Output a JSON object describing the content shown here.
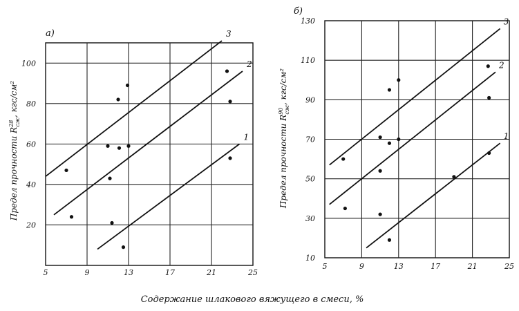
{
  "chart_data": [
    {
      "type": "scatter",
      "panel_label": "а)",
      "ylabel": "Предел прочности R",
      "ylabel_sup": "28",
      "ylabel_sub": "сж",
      "ylabel_unit": ", кгс/см²",
      "xlim": [
        5,
        25
      ],
      "ylim": [
        0,
        110
      ],
      "x_ticks": [
        5,
        9,
        13,
        17,
        21,
        25
      ],
      "y_ticks": [
        20,
        40,
        60,
        80,
        100
      ],
      "grid": true,
      "points": [
        {
          "x": 7.0,
          "y": 47
        },
        {
          "x": 7.5,
          "y": 24
        },
        {
          "x": 11.0,
          "y": 59
        },
        {
          "x": 11.2,
          "y": 43
        },
        {
          "x": 11.4,
          "y": 21
        },
        {
          "x": 12.0,
          "y": 82
        },
        {
          "x": 12.1,
          "y": 58
        },
        {
          "x": 12.5,
          "y": 9
        },
        {
          "x": 12.9,
          "y": 89
        },
        {
          "x": 13.0,
          "y": 59
        },
        {
          "x": 22.5,
          "y": 96
        },
        {
          "x": 22.8,
          "y": 81
        },
        {
          "x": 22.8,
          "y": 53
        }
      ],
      "lines": [
        {
          "name": "1",
          "x": [
            10,
            23.7
          ],
          "y": [
            8,
            60
          ]
        },
        {
          "name": "2",
          "x": [
            5.8,
            24
          ],
          "y": [
            25,
            96
          ]
        },
        {
          "name": "3",
          "x": [
            5,
            22
          ],
          "y": [
            44,
            111
          ]
        }
      ]
    },
    {
      "type": "scatter",
      "panel_label": "б)",
      "ylabel": "Предел прочности R",
      "ylabel_sup": "90",
      "ylabel_sub": "сж",
      "ylabel_unit": ", кгс/см²",
      "xlim": [
        5,
        25
      ],
      "ylim": [
        10,
        130
      ],
      "x_ticks": [
        5,
        9,
        13,
        17,
        21,
        25
      ],
      "y_ticks": [
        10,
        30,
        50,
        70,
        90,
        110,
        130
      ],
      "grid": true,
      "points": [
        {
          "x": 7.0,
          "y": 60
        },
        {
          "x": 7.2,
          "y": 35
        },
        {
          "x": 11.0,
          "y": 71
        },
        {
          "x": 11.0,
          "y": 54
        },
        {
          "x": 11.0,
          "y": 32
        },
        {
          "x": 12.0,
          "y": 95
        },
        {
          "x": 12.0,
          "y": 68
        },
        {
          "x": 12.0,
          "y": 19
        },
        {
          "x": 13.0,
          "y": 100
        },
        {
          "x": 13.0,
          "y": 70
        },
        {
          "x": 19.0,
          "y": 51
        },
        {
          "x": 22.7,
          "y": 107
        },
        {
          "x": 22.8,
          "y": 91
        },
        {
          "x": 22.8,
          "y": 63
        }
      ],
      "lines": [
        {
          "name": "1",
          "x": [
            9.5,
            24
          ],
          "y": [
            15,
            68
          ]
        },
        {
          "name": "2",
          "x": [
            5.5,
            23.5
          ],
          "y": [
            37,
            104
          ]
        },
        {
          "name": "3",
          "x": [
            5.5,
            24
          ],
          "y": [
            57,
            126
          ]
        }
      ]
    }
  ],
  "xlabel": "Содержание шлакового вяжущего в смеси, %"
}
